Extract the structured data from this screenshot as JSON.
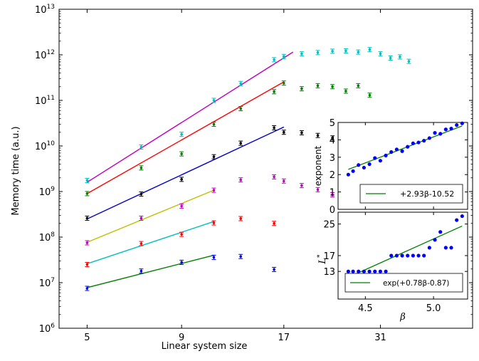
{
  "chart_data": [
    {
      "id": "main",
      "type": "scatter",
      "xlabel": "Linear system size",
      "ylabel": "Memory time (a.u.)",
      "xscale": "log",
      "yscale": "log",
      "xlim": [
        4.2,
        55
      ],
      "ylim": [
        1000000,
        10000000000000
      ],
      "xticks": [
        5,
        9,
        17,
        31
      ],
      "xtick_labels": [
        "5",
        "9",
        "17",
        "31"
      ],
      "ytick_labels": [
        {
          "exp": "6",
          "value": 1000000
        },
        {
          "exp": "7",
          "value": 10000000
        },
        {
          "exp": "8",
          "value": 100000000
        },
        {
          "exp": "9",
          "value": 1000000000
        },
        {
          "exp": "10",
          "value": 10000000000
        },
        {
          "exp": "11",
          "value": 100000000000
        },
        {
          "exp": "12",
          "value": 1000000000000
        },
        {
          "exp": "13",
          "value": 10000000000000
        }
      ],
      "series": [
        {
          "name": "cyan",
          "color": "#00bfbf",
          "x": [
            5,
            7,
            9,
            11,
            13,
            16,
            17,
            19,
            21,
            23,
            25,
            27,
            29,
            31,
            33,
            35,
            37
          ],
          "y": [
            1750000000.0,
            9500000000.0,
            18000000000.0,
            100000000000.0,
            235000000000.0,
            780000000000.0,
            920000000000.0,
            1050000000000.0,
            1120000000000.0,
            1200000000000.0,
            1220000000000.0,
            1150000000000.0,
            1300000000000.0,
            1050000000000.0,
            850000000000.0,
            900000000000.0,
            720000000000.0
          ],
          "fit": {
            "x": [
              5,
              18
            ],
            "y": [
              1600000000.0,
              1150000000000.0
            ],
            "color": "#bf00bf"
          }
        },
        {
          "name": "green",
          "color": "#008000",
          "x": [
            5,
            7,
            9,
            11,
            13,
            16,
            17,
            19,
            21,
            23,
            25,
            27,
            29
          ],
          "y": [
            900000000.0,
            3300000000.0,
            6700000000.0,
            30000000000.0,
            66000000000.0,
            155000000000.0,
            240000000000.0,
            180000000000.0,
            210000000000.0,
            200000000000.0,
            160000000000.0,
            210000000000.0,
            130000000000.0
          ],
          "fit": {
            "x": [
              5,
              17
            ],
            "y": [
              900000000.0,
              255000000000.0
            ],
            "color": "#ff0000"
          }
        },
        {
          "name": "black",
          "color": "#000000",
          "x": [
            5,
            7,
            9,
            11,
            13,
            16,
            17,
            19,
            21,
            23,
            25
          ],
          "y": [
            260000000.0,
            880000000.0,
            1850000000.0,
            5800000000.0,
            11500000000.0,
            25000000000.0,
            20000000000.0,
            19500000000.0,
            17000000000.0,
            15000000000.0,
            12500000000.0
          ],
          "fit": {
            "x": [
              5,
              17
            ],
            "y": [
              250000000.0,
              26000000000.0
            ],
            "color": "#0000cc"
          }
        },
        {
          "name": "magenta",
          "color": "#bf00bf",
          "x": [
            5,
            7,
            9,
            11,
            13,
            16,
            17,
            19,
            21,
            23
          ],
          "y": [
            75000000.0,
            260000000.0,
            480000000.0,
            1070000000.0,
            1800000000.0,
            2100000000.0,
            1700000000.0,
            1350000000.0,
            1100000000.0,
            850000000.0
          ],
          "fit": {
            "x": [
              5,
              11
            ],
            "y": [
              77000000.0,
              1070000000.0
            ],
            "color": "#bfbf00"
          }
        },
        {
          "name": "red",
          "color": "#ff0000",
          "x": [
            5,
            7,
            9,
            11,
            13,
            16
          ],
          "y": [
            25000000.0,
            72000000.0,
            115000000.0,
            205000000.0,
            255000000.0,
            200000000.0
          ],
          "fit": {
            "x": [
              5,
              11
            ],
            "y": [
              26000000.0,
              220000000.0
            ],
            "color": "#00bfbf"
          }
        },
        {
          "name": "blue",
          "color": "#0000ff",
          "x": [
            5,
            7,
            9,
            11,
            13,
            16
          ],
          "y": [
            7500000.0,
            18000000.0,
            28000000.0,
            36000000.0,
            37500000.0,
            19500000.0
          ],
          "fit": {
            "x": [
              5,
              11
            ],
            "y": [
              7800000.0,
              40000000.0
            ],
            "color": "#008000"
          }
        }
      ]
    },
    {
      "id": "inset_top",
      "type": "scatter",
      "ylabel": "exponent",
      "xlim": [
        4.3,
        5.25
      ],
      "ylim": [
        0,
        5
      ],
      "yticks": [
        "0",
        "1",
        "2",
        "3",
        "4",
        "5"
      ],
      "legend": "+2.93β-10.52",
      "legend_loc": "lower-right",
      "points": {
        "color": "#0000ff",
        "x": [
          4.375,
          4.41,
          4.45,
          4.49,
          4.53,
          4.57,
          4.61,
          4.65,
          4.69,
          4.73,
          4.77,
          4.81,
          4.85,
          4.89,
          4.93,
          4.97,
          5.01,
          5.05,
          5.09,
          5.13,
          5.17,
          5.21
        ],
        "y": [
          2.0,
          2.2,
          2.55,
          2.4,
          2.6,
          2.95,
          2.8,
          3.1,
          3.3,
          3.45,
          3.35,
          3.6,
          3.8,
          3.85,
          3.95,
          4.1,
          4.4,
          4.35,
          4.6,
          4.65,
          4.85,
          4.95
        ]
      },
      "fit": {
        "x": [
          4.375,
          5.21
        ],
        "y": [
          2.3,
          4.8
        ],
        "color": "#008000"
      }
    },
    {
      "id": "inset_bottom",
      "type": "scatter",
      "ylabel": "L",
      "ylabel_sup": "*",
      "xlabel": "β",
      "xticks": [
        4.5,
        5.0
      ],
      "xtick_labels": [
        "4.5",
        "5.0"
      ],
      "ylim": [
        6,
        28
      ],
      "yticks": [
        13,
        17,
        25
      ],
      "ytick_labels": [
        "13",
        "17",
        "25"
      ],
      "legend": "exp(+0.78β-0.87)",
      "legend_loc": "lower-right",
      "points": {
        "color": "#0000ff",
        "x": [
          4.375,
          4.41,
          4.45,
          4.49,
          4.53,
          4.57,
          4.61,
          4.65,
          4.69,
          4.73,
          4.77,
          4.81,
          4.85,
          4.89,
          4.93,
          4.97,
          5.01,
          5.05,
          5.09,
          5.13,
          5.17,
          5.21
        ],
        "y": [
          13,
          13,
          13,
          13,
          13,
          13,
          13,
          13,
          17,
          17,
          17,
          17,
          17,
          17,
          17,
          19,
          21,
          23,
          19,
          19,
          26,
          27
        ]
      },
      "fit": {
        "x": [
          4.375,
          5.21
        ],
        "y": [
          11.5,
          24.5
        ],
        "color": "#008000"
      }
    }
  ]
}
